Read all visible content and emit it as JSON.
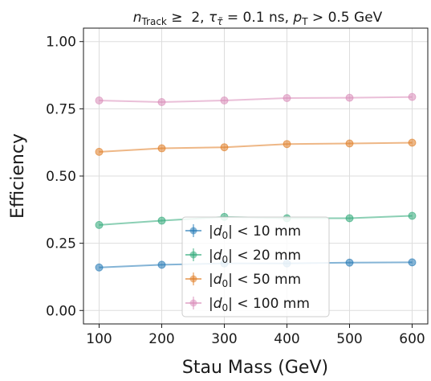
{
  "chart_data": {
    "type": "line",
    "title_parts": {
      "n": "n",
      "n_sub": "Track",
      "geq": " ≥  2, ",
      "tau": "τ",
      "tau_sub": "τ̃",
      "tau_val": " = 0.1 ns, ",
      "p": "p",
      "p_sub": "T",
      "p_val": " > 0.5 GeV"
    },
    "xlabel": "Stau Mass (GeV)",
    "ylabel": "Efficiency",
    "x": [
      100,
      200,
      300,
      400,
      500,
      600
    ],
    "xticks": [
      "100",
      "200",
      "300",
      "400",
      "500",
      "600"
    ],
    "yticks": [
      "0.00",
      "0.25",
      "0.50",
      "0.75",
      "1.00"
    ],
    "xlim": [
      75,
      625
    ],
    "ylim": [
      -0.05,
      1.05
    ],
    "grid": true,
    "legend_position": "lower-center",
    "series": [
      {
        "name_pre": "|",
        "name_d": "d",
        "name_sub": "0",
        "name_post": "| <  10 mm",
        "color": "#1f77b4",
        "values": [
          0.16,
          0.17,
          0.175,
          0.175,
          0.178,
          0.179
        ]
      },
      {
        "name_pre": "|",
        "name_d": "d",
        "name_sub": "0",
        "name_post": "| <  20 mm",
        "color": "#2ca877",
        "values": [
          0.318,
          0.334,
          0.348,
          0.343,
          0.343,
          0.352
        ]
      },
      {
        "name_pre": "|",
        "name_d": "d",
        "name_sub": "0",
        "name_post": "| <  50 mm",
        "color": "#e07b22",
        "values": [
          0.59,
          0.603,
          0.607,
          0.619,
          0.621,
          0.624
        ]
      },
      {
        "name_pre": "|",
        "name_d": "d",
        "name_sub": "0",
        "name_post": "| <  100 mm",
        "color": "#d88ab8",
        "values": [
          0.781,
          0.775,
          0.781,
          0.79,
          0.791,
          0.794
        ]
      }
    ]
  }
}
